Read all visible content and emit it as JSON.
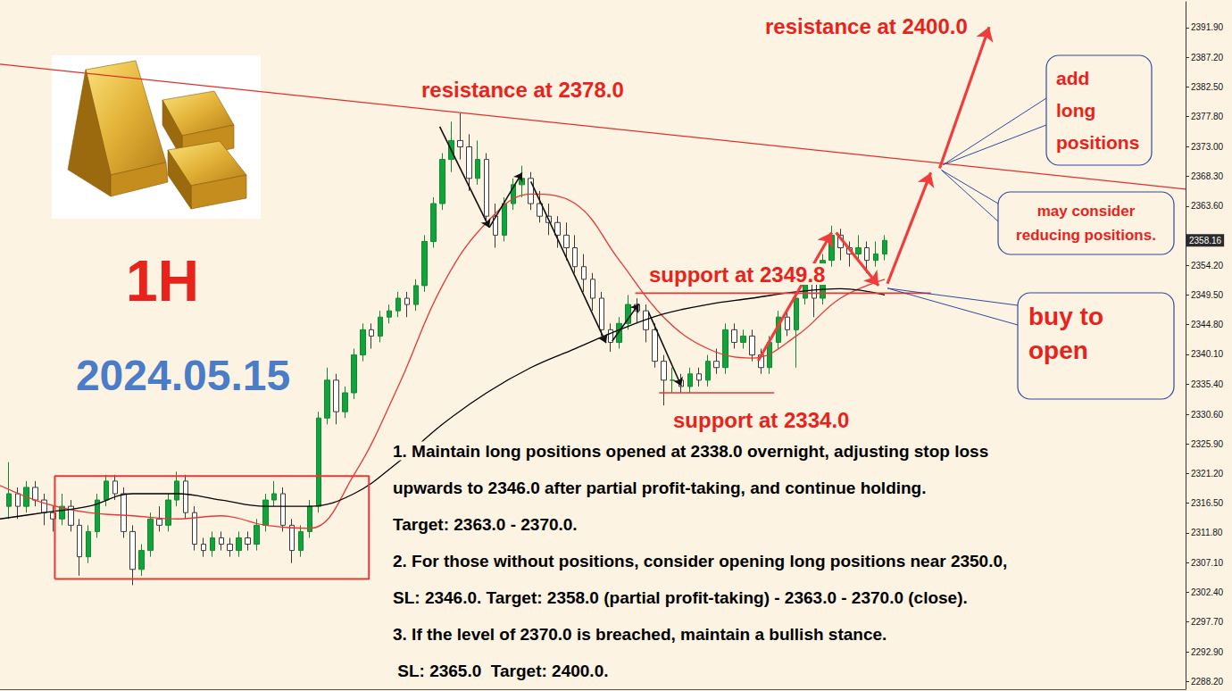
{
  "chart_data": {
    "type": "candlestick",
    "x": [
      1,
      2,
      3,
      4,
      5,
      6,
      7,
      8,
      9,
      10,
      11,
      12,
      13,
      14,
      15,
      16,
      17,
      18,
      19,
      20,
      21,
      22,
      23,
      24,
      25,
      26,
      27,
      28,
      29,
      30,
      31,
      32,
      33,
      34,
      35,
      36,
      37,
      38,
      39,
      40,
      41,
      42,
      43,
      44,
      45,
      46,
      47,
      48,
      49,
      50,
      51,
      52,
      53,
      54,
      55,
      56,
      57,
      58,
      59,
      60,
      61,
      62,
      63,
      64,
      65,
      66,
      67,
      68,
      69,
      70,
      71,
      72,
      73,
      74,
      75,
      76,
      77,
      78,
      79,
      80,
      81,
      82,
      83,
      84,
      85,
      86,
      87,
      88,
      89,
      90,
      91,
      92,
      93,
      94,
      95,
      96,
      97,
      98,
      99,
      100
    ],
    "open": [
      2316,
      2318,
      2316,
      2319,
      2317,
      2315,
      2314,
      2316,
      2313,
      2308,
      2312,
      2317,
      2320,
      2318,
      2312,
      2306,
      2309,
      2314,
      2313,
      2317,
      2320,
      2315,
      2310,
      2309,
      2311,
      2310,
      2309,
      2311,
      2310,
      2313,
      2317,
      2318,
      2313,
      2309,
      2312,
      2316,
      2330,
      2336,
      2331,
      2334,
      2340,
      2344,
      2343,
      2346,
      2347,
      2349,
      2348,
      2351,
      2358,
      2364,
      2371,
      2374,
      2373,
      2368,
      2371,
      2362,
      2359,
      2364,
      2367,
      2368,
      2364,
      2362,
      2361,
      2359,
      2357,
      2354,
      2352,
      2349,
      2344,
      2342,
      2345,
      2348,
      2347,
      2344,
      2339,
      2336,
      2336,
      2335,
      2337,
      2336,
      2339,
      2338,
      2344,
      2342,
      2343,
      2340,
      2338,
      2342,
      2346,
      2344,
      2349,
      2352,
      2349,
      2355,
      2359,
      2357,
      2356,
      2357,
      2355,
      2356
    ],
    "high": [
      2323,
      2319,
      2320,
      2320,
      2318,
      2316,
      2318,
      2317,
      2314,
      2313,
      2318,
      2321,
      2321,
      2319,
      2313,
      2310,
      2315,
      2316,
      2318,
      2321.5,
      2321,
      2316,
      2311,
      2312,
      2312,
      2311,
      2312,
      2312,
      2314,
      2318,
      2320,
      2319,
      2314,
      2313,
      2317,
      2331,
      2338,
      2337,
      2335,
      2341,
      2345,
      2345,
      2347,
      2348,
      2350,
      2350,
      2352,
      2359,
      2365,
      2372,
      2377,
      2378.3,
      2375,
      2374,
      2372,
      2364,
      2365,
      2368,
      2370,
      2369,
      2366,
      2364,
      2362,
      2361,
      2359,
      2356,
      2353,
      2350,
      2345,
      2346,
      2349.5,
      2349,
      2348,
      2345,
      2340,
      2338,
      2337,
      2338,
      2338,
      2340,
      2341,
      2345,
      2345,
      2344,
      2344,
      2341,
      2343,
      2347,
      2347,
      2350,
      2353,
      2354,
      2356,
      2360.5,
      2360,
      2358,
      2359,
      2358,
      2358,
      2359
    ],
    "low": [
      2314,
      2314,
      2315,
      2316,
      2313,
      2312,
      2313,
      2312,
      2305,
      2307,
      2311,
      2316,
      2317,
      2311,
      2303.5,
      2305,
      2308,
      2312,
      2312,
      2316,
      2314,
      2309,
      2308,
      2308,
      2309,
      2308,
      2308,
      2309,
      2309,
      2312,
      2316,
      2312,
      2307,
      2308,
      2311,
      2315,
      2329,
      2329,
      2330,
      2333,
      2339,
      2341,
      2342,
      2345,
      2346,
      2346,
      2347,
      2350,
      2357,
      2363,
      2369,
      2371,
      2366,
      2367,
      2361,
      2357,
      2358,
      2363,
      2365,
      2363,
      2361,
      2359,
      2357,
      2355,
      2353,
      2350,
      2347,
      2343,
      2340.5,
      2341,
      2344,
      2345,
      2342,
      2338,
      2332,
      2334,
      2334,
      2334,
      2335,
      2335,
      2337,
      2337,
      2341,
      2341,
      2339,
      2337,
      2337,
      2341,
      2343,
      2338,
      2348,
      2346,
      2348,
      2354,
      2355,
      2354,
      2355,
      2353,
      2354,
      2355
    ],
    "close": [
      2318,
      2316,
      2319,
      2317,
      2315,
      2314,
      2316,
      2313,
      2308,
      2312,
      2317,
      2320,
      2318,
      2312,
      2306,
      2309,
      2314,
      2313,
      2317,
      2320,
      2315,
      2310,
      2309,
      2311,
      2310,
      2309,
      2311,
      2310,
      2313,
      2317,
      2318,
      2313,
      2309,
      2312,
      2316,
      2330,
      2336,
      2331,
      2334,
      2340,
      2344,
      2343,
      2346,
      2347,
      2349,
      2348,
      2351,
      2358,
      2364,
      2371,
      2374,
      2373,
      2368,
      2371,
      2362,
      2359,
      2364,
      2367,
      2368,
      2364,
      2362,
      2361,
      2359,
      2357,
      2354,
      2352,
      2349,
      2344,
      2342,
      2345,
      2348,
      2347,
      2344,
      2339,
      2336,
      2336,
      2335,
      2337,
      2336,
      2339,
      2338,
      2344,
      2342,
      2343,
      2340,
      2338,
      2342,
      2346,
      2344,
      2349,
      2352,
      2349,
      2355,
      2359,
      2357,
      2356,
      2357,
      2355,
      2356,
      2358.16
    ],
    "xlim": [
      0,
      134
    ],
    "ylim": [
      2287,
      2396
    ],
    "yticks": [
      {
        "value": 2391.9,
        "label": "2391.90"
      },
      {
        "value": 2387.2,
        "label": "2387.20"
      },
      {
        "value": 2382.5,
        "label": "2382.50"
      },
      {
        "value": 2377.8,
        "label": "2377.80"
      },
      {
        "value": 2373.0,
        "label": "2373.00"
      },
      {
        "value": 2368.3,
        "label": "2368.30"
      },
      {
        "value": 2363.6,
        "label": "2363.60"
      },
      {
        "value": 2354.2,
        "label": "2354.20"
      },
      {
        "value": 2349.5,
        "label": "2349.50"
      },
      {
        "value": 2344.8,
        "label": "2344.80"
      },
      {
        "value": 2340.1,
        "label": "2340.10"
      },
      {
        "value": 2335.4,
        "label": "2335.40"
      },
      {
        "value": 2330.6,
        "label": "2330.60"
      },
      {
        "value": 2325.9,
        "label": "2325.90"
      },
      {
        "value": 2321.2,
        "label": "2321.20"
      },
      {
        "value": 2316.5,
        "label": "2316.50"
      },
      {
        "value": 2311.8,
        "label": "2311.80"
      },
      {
        "value": 2307.1,
        "label": "2307.10"
      },
      {
        "value": 2302.4,
        "label": "2302.40"
      },
      {
        "value": 2297.7,
        "label": "2297.70"
      },
      {
        "value": 2292.9,
        "label": "2292.90"
      },
      {
        "value": 2288.2,
        "label": "2288.20"
      }
    ],
    "grid": false,
    "tick_labels": "y",
    "last_price": 2358.16,
    "series": [
      {
        "type": "line",
        "color": "#e53935",
        "x": [
          0,
          5,
          10,
          15,
          20,
          25,
          30,
          35,
          40,
          45,
          50,
          55,
          60,
          65,
          70,
          75,
          80,
          85,
          90,
          95,
          100
        ],
        "values": [
          2319.3,
          2316.5,
          2315,
          2314.5,
          2314,
          2314.5,
          2313,
          2312.5,
          2321,
          2335,
          2351,
          2361,
          2365.5,
          2364,
          2355,
          2346,
          2341,
          2339.5,
          2343,
          2349,
          2352
        ]
      },
      {
        "type": "line",
        "color": "#000000",
        "x": [
          0,
          5,
          10,
          15,
          20,
          25,
          30,
          35,
          40,
          45,
          50,
          55,
          60,
          65,
          70,
          75,
          80,
          85,
          90,
          95,
          100
        ],
        "values": [
          2314,
          2315,
          2316,
          2318,
          2318,
          2317,
          2316,
          2316,
          2318,
          2323,
          2329,
          2334,
          2338,
          2341,
          2344,
          2346.5,
          2348,
          2349,
          2350,
          2350.5,
          2349.5
        ]
      }
    ],
    "trendline": {
      "color": "#e0302a",
      "x": [
        0,
        134
      ],
      "values": [
        2386.1,
        2366.3
      ]
    },
    "levels": [
      {
        "value": 2349.8,
        "x": [
          71.8,
          105.2
        ],
        "color": "#e53935"
      },
      {
        "value": 2334.0,
        "x": [
          74.5,
          87.5
        ],
        "color": "#e53935"
      }
    ],
    "box": {
      "x": [
        6.2,
        41.7
      ],
      "values": [
        2304.5,
        2320.8
      ],
      "color": "#e53935"
    },
    "arrows": [
      {
        "color": "#111111",
        "line_style": "thin",
        "paths": [
          [
            [
              49.7,
              2376.2
            ],
            [
              55.3,
              2360.2
            ]
          ],
          [
            [
              55.3,
              2360.2
            ],
            [
              59.0,
              2368.9
            ]
          ],
          [
            [
              60.0,
              2367.5
            ],
            [
              68.5,
              2341.9
            ]
          ],
          [
            [
              69.2,
              2342.2
            ],
            [
              72.2,
              2348.1
            ]
          ],
          [
            [
              73.3,
              2346.8
            ],
            [
              77.0,
              2335.1
            ]
          ]
        ]
      },
      {
        "color": "#f03c3c",
        "line_style": "thick",
        "paths": [
          [
            [
              85.7,
              2339.1
            ],
            [
              94.0,
              2359.4
            ]
          ],
          [
            [
              94.5,
              2359.4
            ],
            [
              99.3,
              2351.0
            ]
          ],
          [
            [
              100.3,
              2351.3
            ],
            [
              105.2,
              2368.9
            ]
          ],
          [
            [
              106.2,
              2369.6
            ],
            [
              111.8,
              2392.0
            ]
          ]
        ]
      }
    ],
    "labels": [
      {
        "text": "resistance at 2378.0",
        "color": "#e8231b"
      },
      {
        "text": "resistance at 2400.0",
        "color": "#e8231b"
      },
      {
        "text": "support at 2349.8",
        "color": "#e8231b"
      },
      {
        "text": "support at 2334.0",
        "color": "#e8231b"
      },
      {
        "text": "1H",
        "color": "#e8231b"
      },
      {
        "text": "2024.05.15",
        "color": "#4a7cc8"
      }
    ],
    "callouts": [
      {
        "text": "add long positions",
        "color": "#e8231b"
      },
      {
        "text": "may consider reducing positions.",
        "color": "#e8231b"
      },
      {
        "text": "buy to open",
        "color": "#e8231b"
      }
    ],
    "notes": {
      "color": "#000000",
      "lines": [
        "1. Maintain long positions opened at 2338.0 overnight, adjusting stop loss",
        "upwards to 2346.0 after partial profit-taking, and continue holding.",
        "Target: 2363.0 - 2370.0.",
        "2. For those without positions, consider opening long positions near 2350.0,",
        "SL: 2346.0. Target: 2358.0 (partial profit-taking) - 2363.0 - 2370.0 (close).",
        "3. If the level of 2370.0 is breached, maintain a bullish stance.",
        " SL: 2365.0  Target: 2400.0."
      ]
    }
  }
}
